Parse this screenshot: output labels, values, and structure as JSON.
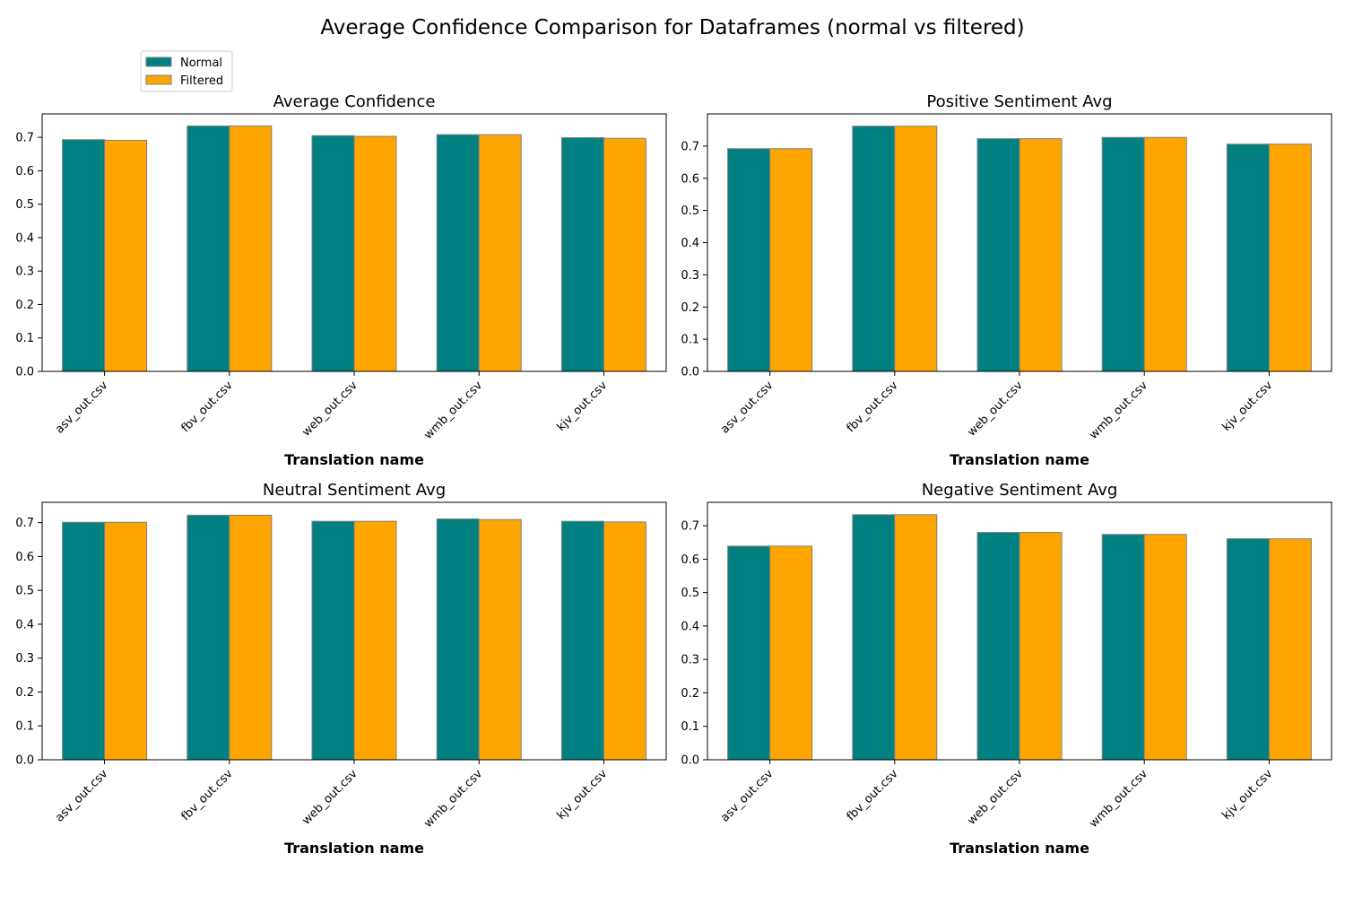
{
  "figure": {
    "title": "Average Confidence Comparison for Dataframes (normal vs filtered)",
    "legend": {
      "placement": "top-left (above first panel)",
      "items": [
        {
          "label": "Normal",
          "color": "#008080"
        },
        {
          "label": "Filtered",
          "color": "#FFA500"
        }
      ]
    },
    "bar_edge_color": "#808080"
  },
  "chart_data": [
    {
      "type": "bar",
      "title": "Average Confidence",
      "xlabel": "Translation name",
      "ylabel": "",
      "categories": [
        "asv_out.csv",
        "fbv_out.csv",
        "web_out.csv",
        "wmb_out.csv",
        "kjv_out.csv"
      ],
      "series": [
        {
          "name": "Normal",
          "values": [
            0.693,
            0.734,
            0.705,
            0.708,
            0.699
          ]
        },
        {
          "name": "Filtered",
          "values": [
            0.691,
            0.734,
            0.703,
            0.708,
            0.697
          ]
        }
      ],
      "ylim": [
        0,
        0.77
      ],
      "yticks": [
        0.0,
        0.1,
        0.2,
        0.3,
        0.4,
        0.5,
        0.6,
        0.7
      ],
      "grid": false
    },
    {
      "type": "bar",
      "title": "Positive Sentiment Avg",
      "xlabel": "Translation name",
      "ylabel": "",
      "categories": [
        "asv_out.csv",
        "fbv_out.csv",
        "web_out.csv",
        "wmb_out.csv",
        "kjv_out.csv"
      ],
      "series": [
        {
          "name": "Normal",
          "values": [
            0.692,
            0.762,
            0.723,
            0.727,
            0.706
          ]
        },
        {
          "name": "Filtered",
          "values": [
            0.692,
            0.762,
            0.723,
            0.727,
            0.706
          ]
        }
      ],
      "ylim": [
        0,
        0.8
      ],
      "yticks": [
        0.0,
        0.1,
        0.2,
        0.3,
        0.4,
        0.5,
        0.6,
        0.7
      ],
      "grid": false
    },
    {
      "type": "bar",
      "title": "Neutral Sentiment Avg",
      "xlabel": "Translation name",
      "ylabel": "",
      "categories": [
        "asv_out.csv",
        "fbv_out.csv",
        "web_out.csv",
        "wmb_out.csv",
        "kjv_out.csv"
      ],
      "series": [
        {
          "name": "Normal",
          "values": [
            0.701,
            0.722,
            0.704,
            0.711,
            0.704
          ]
        },
        {
          "name": "Filtered",
          "values": [
            0.701,
            0.722,
            0.704,
            0.709,
            0.702
          ]
        }
      ],
      "ylim": [
        0,
        0.76
      ],
      "yticks": [
        0.0,
        0.1,
        0.2,
        0.3,
        0.4,
        0.5,
        0.6,
        0.7
      ],
      "grid": false
    },
    {
      "type": "bar",
      "title": "Negative Sentiment Avg",
      "xlabel": "Translation name",
      "ylabel": "",
      "categories": [
        "asv_out.csv",
        "fbv_out.csv",
        "web_out.csv",
        "wmb_out.csv",
        "kjv_out.csv"
      ],
      "series": [
        {
          "name": "Normal",
          "values": [
            0.639,
            0.733,
            0.68,
            0.674,
            0.661
          ]
        },
        {
          "name": "Filtered",
          "values": [
            0.639,
            0.733,
            0.68,
            0.674,
            0.661
          ]
        }
      ],
      "ylim": [
        0,
        0.77
      ],
      "yticks": [
        0.0,
        0.1,
        0.2,
        0.3,
        0.4,
        0.5,
        0.6,
        0.7
      ],
      "grid": false
    }
  ]
}
